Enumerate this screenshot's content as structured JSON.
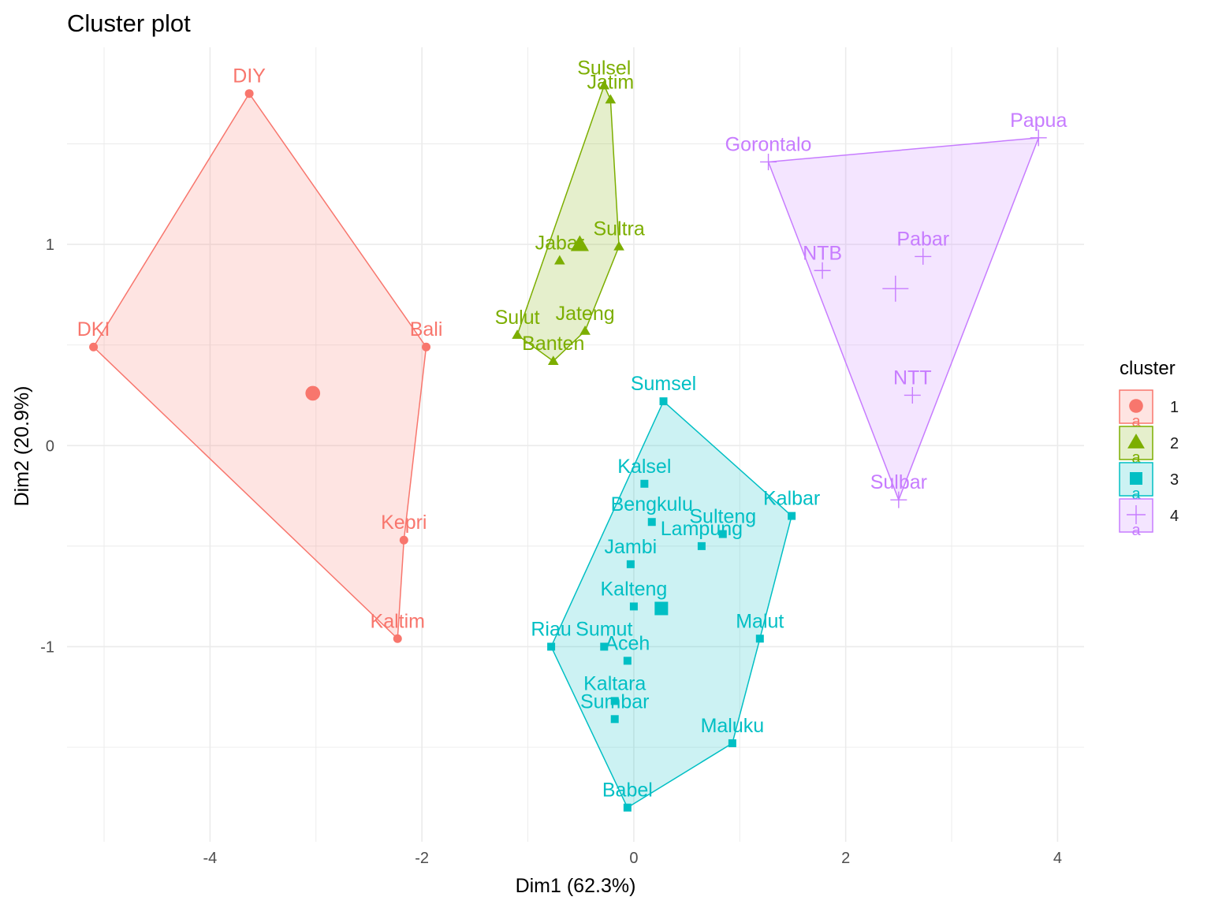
{
  "chart_data": {
    "type": "scatter",
    "title": "Cluster plot",
    "xlabel": "Dim1 (62.3%)",
    "ylabel": "Dim2 (20.9%)",
    "xlim": [
      -5.35,
      4.25
    ],
    "ylim": [
      -1.97,
      1.98
    ],
    "xticks": [
      -4,
      -2,
      0,
      2,
      4
    ],
    "xtick_labels": [
      "-4",
      "-2",
      "0",
      "2",
      "4"
    ],
    "yticks": [
      -1,
      0,
      1
    ],
    "ytick_labels": [
      "-1",
      "0",
      "1"
    ],
    "grid": true,
    "legend": {
      "title": "cluster",
      "position": "right"
    },
    "series": [
      {
        "name": "1",
        "color": "#F8766D",
        "shape": "circle",
        "centroid": [
          -3.03,
          0.26
        ],
        "hull": [
          "DIY",
          "Bali",
          "Kepri",
          "Kaltim",
          "DKI"
        ],
        "points": [
          {
            "label": "DIY",
            "x": -3.63,
            "y": 1.75
          },
          {
            "label": "DKI",
            "x": -5.1,
            "y": 0.49
          },
          {
            "label": "Bali",
            "x": -1.96,
            "y": 0.49
          },
          {
            "label": "Kepri",
            "x": -2.17,
            "y": -0.47
          },
          {
            "label": "Kaltim",
            "x": -2.23,
            "y": -0.96
          }
        ]
      },
      {
        "name": "2",
        "color": "#7CAE00",
        "shape": "triangle",
        "centroid": [
          -0.51,
          1.0
        ],
        "hull": [
          "Sulsel",
          "Jatim",
          "Sultra",
          "Jateng",
          "Banten",
          "Sulut"
        ],
        "points": [
          {
            "label": "Sulsel",
            "x": -0.28,
            "y": 1.79
          },
          {
            "label": "Jatim",
            "x": -0.22,
            "y": 1.72
          },
          {
            "label": "Jabar",
            "x": -0.7,
            "y": 0.92
          },
          {
            "label": "Sultra",
            "x": -0.14,
            "y": 0.99
          },
          {
            "label": "Sulut",
            "x": -1.1,
            "y": 0.55
          },
          {
            "label": "Jateng",
            "x": -0.46,
            "y": 0.57
          },
          {
            "label": "Banten",
            "x": -0.76,
            "y": 0.42
          }
        ]
      },
      {
        "name": "3",
        "color": "#00BFC4",
        "shape": "square",
        "centroid": [
          0.26,
          -0.81
        ],
        "hull": [
          "Sumsel",
          "Kalbar",
          "Malut",
          "Maluku",
          "Babel",
          "Riau"
        ],
        "points": [
          {
            "label": "Sumsel",
            "x": 0.28,
            "y": 0.22
          },
          {
            "label": "Kalsel",
            "x": 0.1,
            "y": -0.19
          },
          {
            "label": "Bengkulu",
            "x": 0.17,
            "y": -0.38
          },
          {
            "label": "Sulteng",
            "x": 0.84,
            "y": -0.44
          },
          {
            "label": "Lampung",
            "x": 0.64,
            "y": -0.5
          },
          {
            "label": "Kalbar",
            "x": 1.49,
            "y": -0.35
          },
          {
            "label": "Jambi",
            "x": -0.03,
            "y": -0.59
          },
          {
            "label": "Kalteng",
            "x": 0.0,
            "y": -0.8
          },
          {
            "label": "Riau",
            "x": -0.78,
            "y": -1.0
          },
          {
            "label": "Sumut",
            "x": -0.28,
            "y": -1.0
          },
          {
            "label": "Aceh",
            "x": -0.06,
            "y": -1.07
          },
          {
            "label": "Malut",
            "x": 1.19,
            "y": -0.96
          },
          {
            "label": "Kaltara",
            "x": -0.18,
            "y": -1.27
          },
          {
            "label": "Sumbar",
            "x": -0.18,
            "y": -1.36
          },
          {
            "label": "Maluku",
            "x": 0.93,
            "y": -1.48
          },
          {
            "label": "Babel",
            "x": -0.06,
            "y": -1.8
          }
        ]
      },
      {
        "name": "4",
        "color": "#C77CFF",
        "shape": "plus",
        "centroid": [
          2.47,
          0.78
        ],
        "hull": [
          "Gorontalo",
          "Papua",
          "Sulbar"
        ],
        "points": [
          {
            "label": "Papua",
            "x": 3.82,
            "y": 1.53
          },
          {
            "label": "Gorontalo",
            "x": 1.27,
            "y": 1.41
          },
          {
            "label": "Pabar",
            "x": 2.73,
            "y": 0.94
          },
          {
            "label": "NTB",
            "x": 1.78,
            "y": 0.87
          },
          {
            "label": "NTT",
            "x": 2.63,
            "y": 0.25
          },
          {
            "label": "Sulbar",
            "x": 2.5,
            "y": -0.27
          }
        ]
      }
    ]
  }
}
